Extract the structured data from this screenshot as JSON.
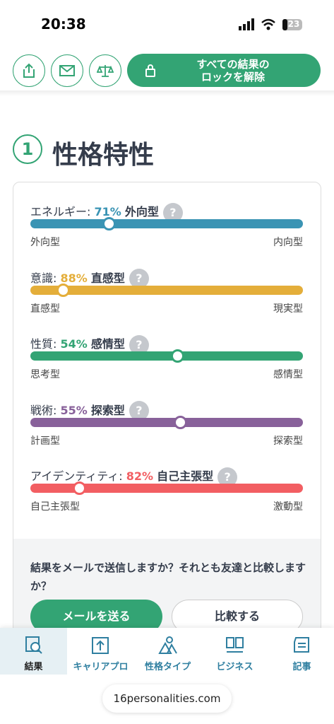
{
  "status_bar": {
    "time": "20:38",
    "battery": 23
  },
  "top_bar": {
    "unlock_button": "すべての結果の\nロックを解除"
  },
  "section": {
    "number": 1,
    "title": "性格特性"
  },
  "traits": [
    {
      "label": "エネルギー: ",
      "percent": 71,
      "percent_label": "71%",
      "type": "外向型",
      "left": "外向型",
      "right": "内向型",
      "color": "#3a94b4",
      "side": "left"
    },
    {
      "label": "意識: ",
      "percent": 88,
      "percent_label": "88%",
      "type": "直感型",
      "left": "直感型",
      "right": "現実型",
      "color": "#e4ae3a",
      "side": "left"
    },
    {
      "label": "性質: ",
      "percent": 54,
      "percent_label": "54%",
      "type": "感情型",
      "left": "思考型",
      "right": "感情型",
      "color": "#33a474",
      "side": "right"
    },
    {
      "label": "戦術: ",
      "percent": 55,
      "percent_label": "55%",
      "type": "探索型",
      "left": "計画型",
      "right": "探索型",
      "color": "#88619a",
      "side": "right"
    },
    {
      "label": "アイデンティティ: ",
      "percent": 82,
      "percent_label": "82%",
      "type": "自己主張型",
      "left": "自己主張型",
      "right": "激動型",
      "color": "#f25e62",
      "side": "left"
    }
  ],
  "share": {
    "question": "結果をメールで送信しますか？それとも友達と比較しますか？",
    "email_button": "メールを送る",
    "compare_button": "比較する"
  },
  "nav": [
    "結果",
    "キャリアプロ",
    "性格タイプ",
    "ビジネス",
    "記事"
  ],
  "url": "16personalities.com"
}
